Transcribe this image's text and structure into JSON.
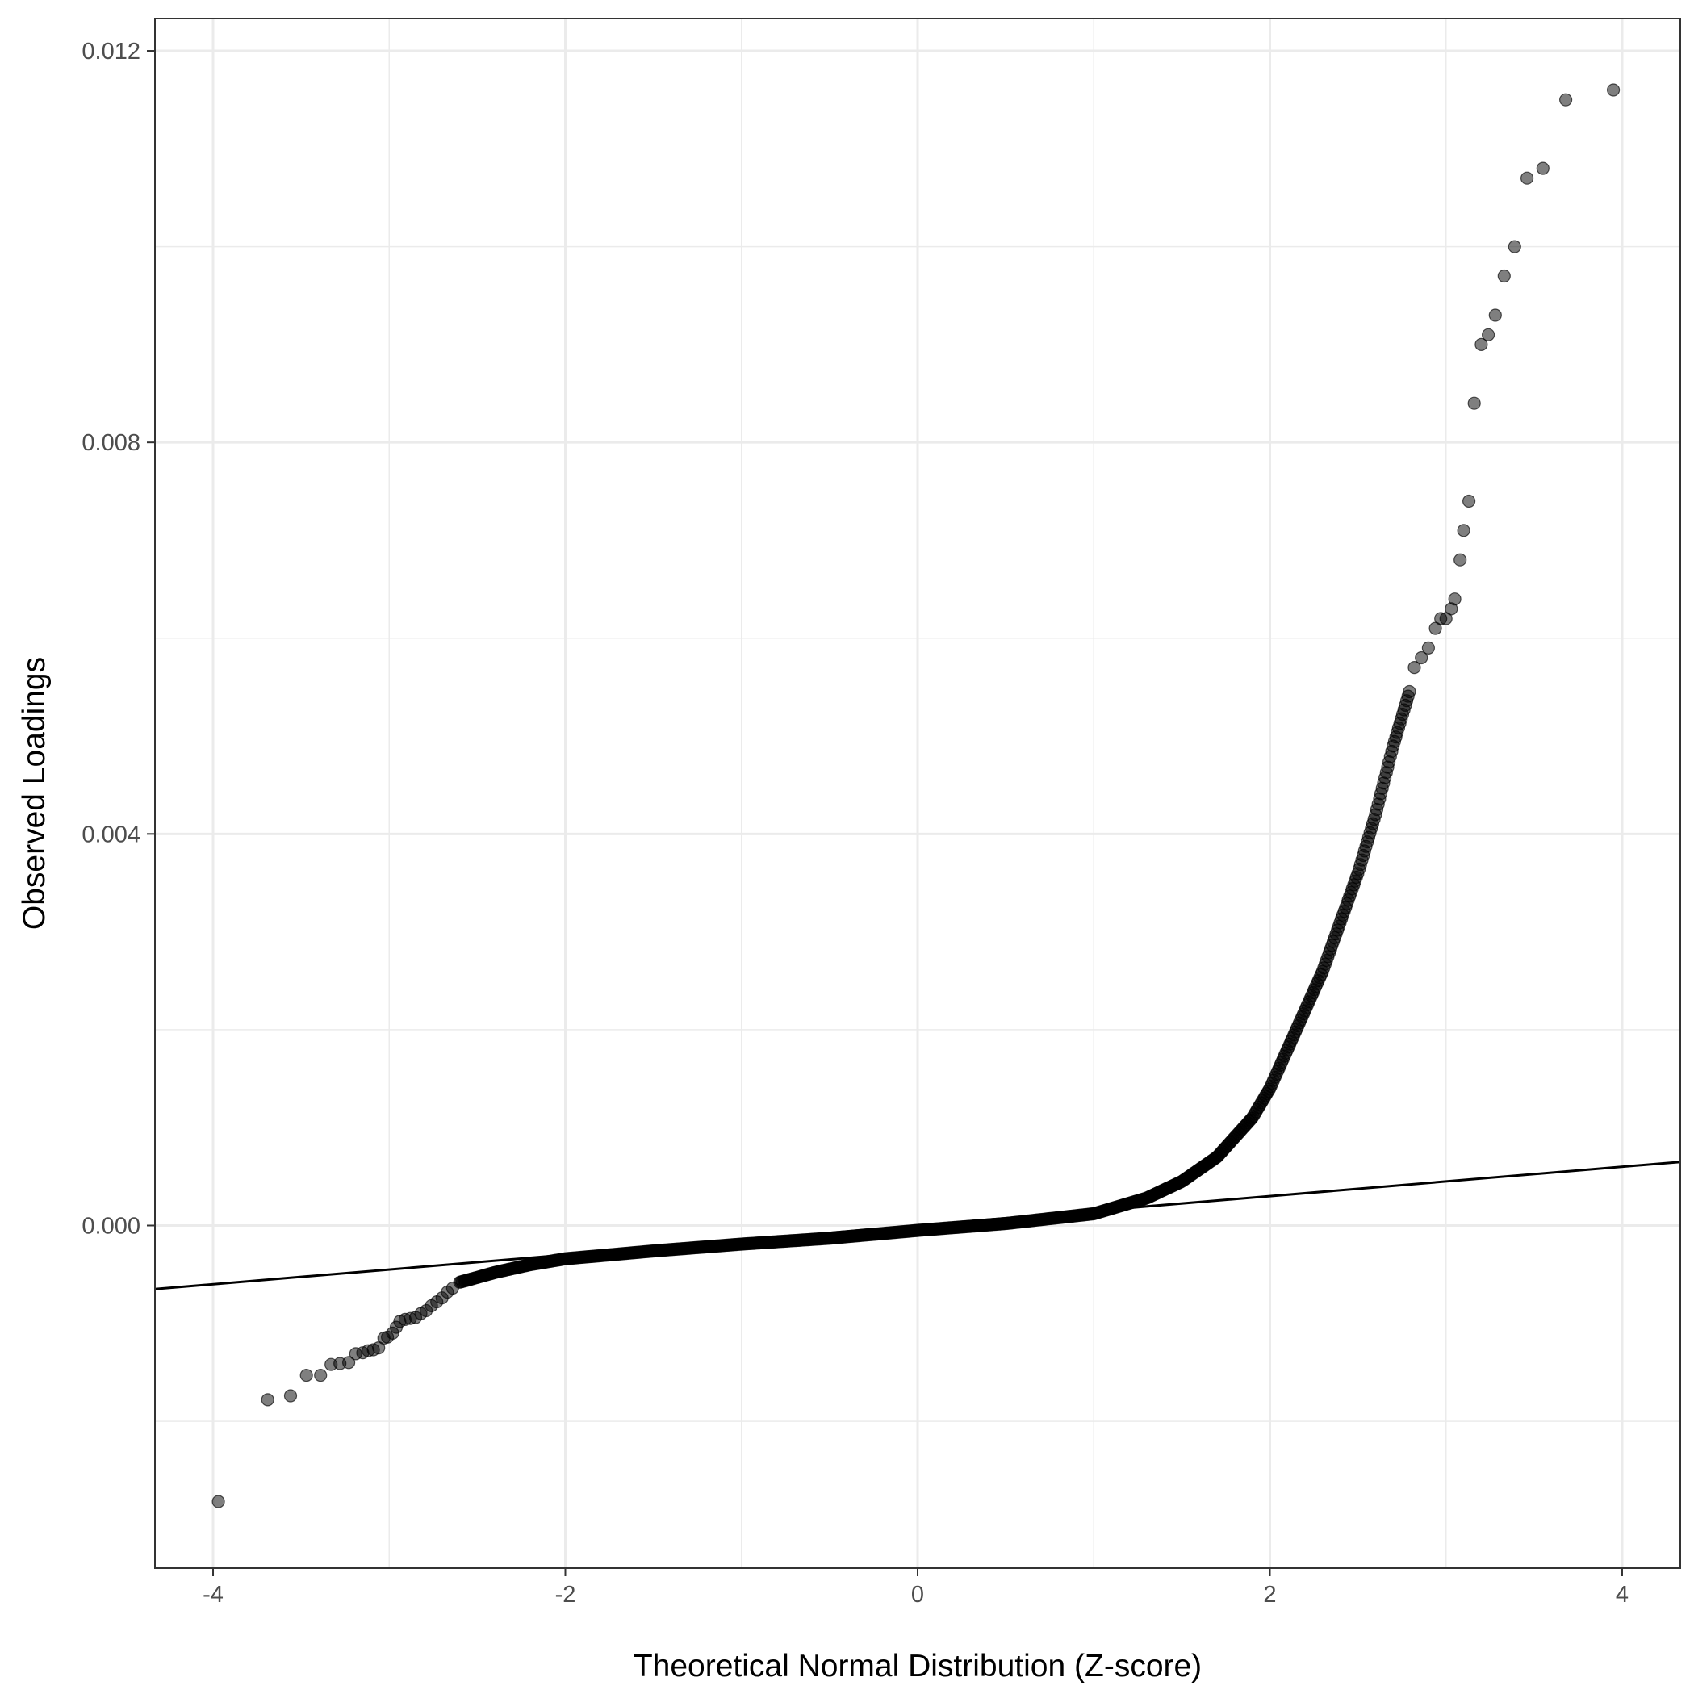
{
  "chart_data": {
    "type": "scatter",
    "subtype": "qq-plot",
    "title": "",
    "xlabel": "Theoretical Normal Distribution (Z-score)",
    "ylabel": "Observed Loadings",
    "xlim": [
      -4.33,
      4.33
    ],
    "ylim": [
      -0.0035,
      0.01233
    ],
    "x_ticks": [
      -4,
      -2,
      0,
      2,
      4
    ],
    "x_tick_labels": [
      "-4",
      "-2",
      "0",
      "2",
      "4"
    ],
    "y_ticks": [
      0.0,
      0.004,
      0.008,
      0.012
    ],
    "y_tick_labels": [
      "0.000",
      "0.004",
      "0.008",
      "0.012"
    ],
    "grid": true,
    "legend": "none",
    "reference_line": {
      "slope": 0.00015,
      "intercept": 0.0,
      "color": "#000000"
    },
    "point_color": "#000000",
    "point_opacity": 0.5,
    "curve_knots": [
      [
        -2.6,
        -0.00058
      ],
      [
        -2.4,
        -0.00048
      ],
      [
        -2.2,
        -0.0004
      ],
      [
        -2.0,
        -0.00034
      ],
      [
        -1.5,
        -0.00026
      ],
      [
        -1.0,
        -0.00019
      ],
      [
        -0.5,
        -0.00013
      ],
      [
        0.0,
        -5e-05
      ],
      [
        0.5,
        2e-05
      ],
      [
        1.0,
        0.00012
      ],
      [
        1.3,
        0.00028
      ],
      [
        1.5,
        0.00045
      ],
      [
        1.7,
        0.0007
      ],
      [
        1.9,
        0.0011
      ],
      [
        2.0,
        0.0014
      ],
      [
        2.1,
        0.0018
      ],
      [
        2.2,
        0.0022
      ],
      [
        2.3,
        0.0026
      ],
      [
        2.4,
        0.0031
      ],
      [
        2.5,
        0.0036
      ],
      [
        2.6,
        0.0042
      ],
      [
        2.7,
        0.0049
      ],
      [
        2.8,
        0.0055
      ]
    ],
    "outlier_points": [
      [
        -3.97,
        -0.00282
      ],
      [
        -3.69,
        -0.00178
      ],
      [
        -3.56,
        -0.00174
      ],
      [
        -3.47,
        -0.00153
      ],
      [
        -3.39,
        -0.00153
      ],
      [
        -3.33,
        -0.00142
      ],
      [
        -3.28,
        -0.00141
      ],
      [
        -3.23,
        -0.0014
      ],
      [
        -3.19,
        -0.00131
      ],
      [
        -3.15,
        -0.0013
      ],
      [
        -3.12,
        -0.00128
      ],
      [
        -3.09,
        -0.00127
      ],
      [
        -3.06,
        -0.00125
      ],
      [
        -3.03,
        -0.00115
      ],
      [
        -3.01,
        -0.00114
      ],
      [
        -2.98,
        -0.0011
      ],
      [
        -2.96,
        -0.00104
      ],
      [
        -2.94,
        -0.00098
      ],
      [
        -2.91,
        -0.00096
      ],
      [
        -2.88,
        -0.00095
      ],
      [
        -2.85,
        -0.00094
      ],
      [
        -2.82,
        -0.0009
      ],
      [
        -2.79,
        -0.00087
      ],
      [
        -2.76,
        -0.00082
      ],
      [
        -2.73,
        -0.00078
      ],
      [
        -2.7,
        -0.00074
      ],
      [
        -2.67,
        -0.00068
      ],
      [
        -2.64,
        -0.00064
      ],
      [
        2.82,
        0.0057
      ],
      [
        2.86,
        0.0058
      ],
      [
        2.9,
        0.0059
      ],
      [
        2.94,
        0.0061
      ],
      [
        2.97,
        0.0062
      ],
      [
        3.0,
        0.0062
      ],
      [
        3.03,
        0.0063
      ],
      [
        3.05,
        0.0064
      ],
      [
        3.08,
        0.0068
      ],
      [
        3.1,
        0.0071
      ],
      [
        3.13,
        0.0074
      ],
      [
        3.16,
        0.0084
      ],
      [
        3.2,
        0.009
      ],
      [
        3.24,
        0.0091
      ],
      [
        3.28,
        0.0093
      ],
      [
        3.33,
        0.0097
      ],
      [
        3.39,
        0.01
      ],
      [
        3.46,
        0.0107
      ],
      [
        3.55,
        0.0108
      ],
      [
        3.68,
        0.0115
      ],
      [
        3.95,
        0.0116
      ]
    ]
  }
}
